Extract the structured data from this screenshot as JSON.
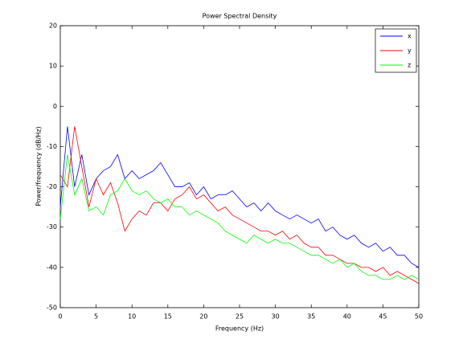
{
  "chart_data": {
    "type": "line",
    "title": "Power Spectral Density",
    "x_label": "Frequency (Hz)",
    "y_label": "Power/frequency (dB/Hz)",
    "x": [
      0,
      1,
      2,
      3,
      4,
      5,
      6,
      7,
      8,
      9,
      10,
      11,
      12,
      13,
      14,
      15,
      16,
      17,
      18,
      19,
      20,
      21,
      22,
      23,
      24,
      25,
      26,
      27,
      28,
      29,
      30,
      31,
      32,
      33,
      34,
      35,
      36,
      37,
      38,
      39,
      40,
      41,
      42,
      43,
      44,
      45,
      46,
      47,
      48,
      49,
      50
    ],
    "series": [
      {
        "name": "x",
        "color": "#0000ff",
        "values": [
          -25,
          -5,
          -20,
          -12,
          -22,
          -18,
          -16,
          -15,
          -12,
          -18,
          -16,
          -18,
          -17,
          -16,
          -14,
          -17,
          -20,
          -20,
          -19,
          -22,
          -20,
          -23,
          -22,
          -22,
          -21,
          -23,
          -25,
          -24,
          -26,
          -24,
          -26,
          -27,
          -28,
          -27,
          -28,
          -29,
          -28,
          -31,
          -30,
          -32,
          -33,
          -32,
          -34,
          -35,
          -34,
          -36,
          -35,
          -37,
          -37,
          -39,
          -40
        ]
      },
      {
        "name": "y",
        "color": "#ff0000",
        "values": [
          -17,
          -20,
          -5,
          -15,
          -25,
          -18,
          -22,
          -19,
          -24,
          -31,
          -28,
          -26,
          -27,
          -24,
          -24,
          -26,
          -23,
          -22,
          -20,
          -23,
          -22,
          -24,
          -26,
          -25,
          -27,
          -28,
          -29,
          -30,
          -31,
          -31,
          -32,
          -31,
          -33,
          -32,
          -34,
          -35,
          -35,
          -37,
          -37,
          -38,
          -39,
          -39,
          -40,
          -40,
          -41,
          -40,
          -42,
          -41,
          -42,
          -43,
          -44
        ]
      },
      {
        "name": "z",
        "color": "#00ff00",
        "values": [
          -28,
          -12,
          -22,
          -18,
          -26,
          -25,
          -27,
          -22,
          -21,
          -18,
          -21,
          -22,
          -21,
          -23,
          -24,
          -23,
          -25,
          -25,
          -27,
          -26,
          -27,
          -28,
          -29,
          -31,
          -32,
          -33,
          -34,
          -32,
          -33,
          -34,
          -33,
          -34,
          -34,
          -35,
          -36,
          -37,
          -37,
          -38,
          -39,
          -38,
          -40,
          -39,
          -41,
          -42,
          -42,
          -43,
          -43,
          -42,
          -43,
          -42,
          -43
        ]
      }
    ],
    "xlim": [
      0,
      50
    ],
    "ylim": [
      -50,
      20
    ],
    "xticks": [
      0,
      5,
      10,
      15,
      20,
      25,
      30,
      35,
      40,
      45,
      50
    ],
    "yticks": [
      -50,
      -40,
      -30,
      -20,
      -10,
      0,
      10,
      20
    ],
    "legend": "upper right"
  }
}
